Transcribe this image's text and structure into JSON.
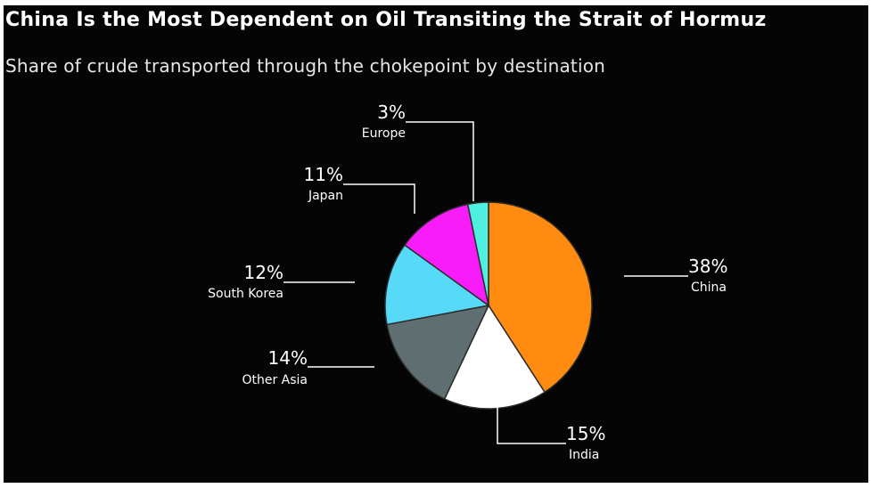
{
  "header": {
    "title": "China Is the Most Dependent on Oil Transiting the Strait of Hormuz",
    "subtitle": "Share of crude transported through the chokepoint by destination"
  },
  "chart_data": {
    "type": "pie",
    "title": "China Is the Most Dependent on Oil Transiting the Strait of Hormuz",
    "subtitle": "Share of crude transported through the chokepoint by destination",
    "slices": [
      {
        "label": "China",
        "value": 38,
        "value_label": "38%",
        "color": "#ff8c10"
      },
      {
        "label": "India",
        "value": 15,
        "value_label": "15%",
        "color": "#ffffff"
      },
      {
        "label": "Other Asia",
        "value": 14,
        "value_label": "14%",
        "color": "#5f6e70"
      },
      {
        "label": "South Korea",
        "value": 12,
        "value_label": "12%",
        "color": "#56daf8"
      },
      {
        "label": "Japan",
        "value": 11,
        "value_label": "11%",
        "color": "#f81cf8"
      },
      {
        "label": "Europe",
        "value": 3,
        "value_label": "3%",
        "color": "#4ff0e0"
      }
    ],
    "legend": "none",
    "background": "#050505"
  }
}
